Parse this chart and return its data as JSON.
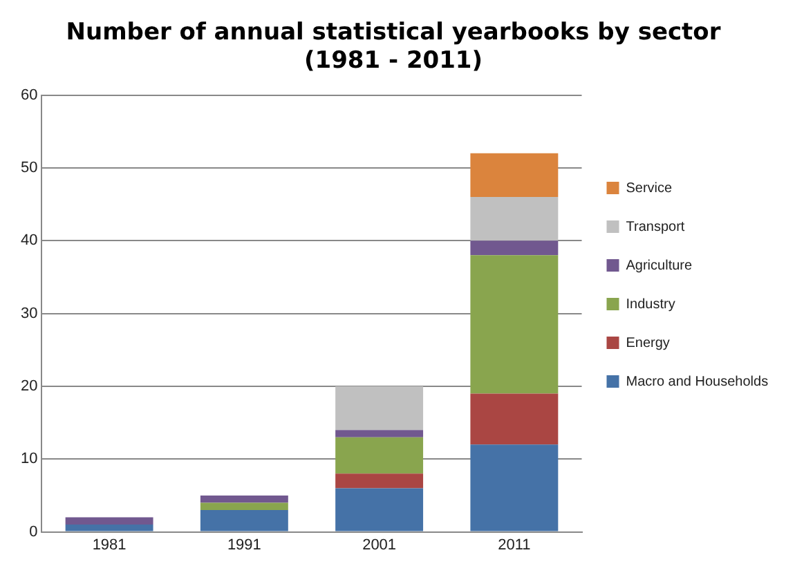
{
  "chart_data": {
    "type": "bar",
    "stacked": true,
    "title": "Number of annual statistical yearbooks by sector\n(1981 - 2011)",
    "categories": [
      "1981",
      "1991",
      "2001",
      "2011"
    ],
    "series": [
      {
        "name": "Macro and Households",
        "color": "#4572a7",
        "values": [
          1,
          3,
          6,
          12
        ]
      },
      {
        "name": "Energy",
        "color": "#aa4643",
        "values": [
          0,
          0,
          2,
          7
        ]
      },
      {
        "name": "Industry",
        "color": "#89a54e",
        "values": [
          0,
          1,
          5,
          19
        ]
      },
      {
        "name": "Agriculture",
        "color": "#71588f",
        "values": [
          1,
          1,
          1,
          2
        ]
      },
      {
        "name": "Transport",
        "color": "#c0c0c0",
        "values": [
          0,
          0,
          6,
          6
        ]
      },
      {
        "name": "Service",
        "color": "#db843d",
        "values": [
          0,
          0,
          0,
          6
        ]
      }
    ],
    "ylim": [
      0,
      60
    ],
    "yticks": [
      0,
      10,
      20,
      30,
      40,
      50,
      60
    ],
    "grid": "y",
    "legend": "right"
  }
}
